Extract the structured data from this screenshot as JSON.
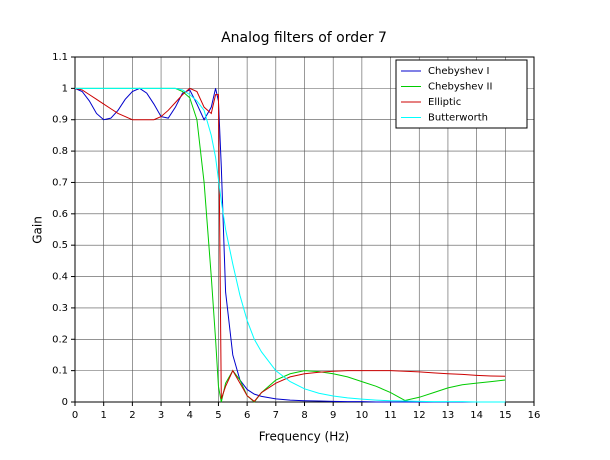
{
  "chart_data": {
    "type": "line",
    "title": "Analog filters of order 7",
    "x_label": "Frequency (Hz)",
    "y_label": "Gain",
    "x": [
      0,
      0.25,
      0.5,
      0.75,
      1,
      1.25,
      1.5,
      1.75,
      2,
      2.25,
      2.5,
      2.75,
      3,
      3.25,
      3.5,
      3.75,
      4,
      4.25,
      4.5,
      4.75,
      4.9,
      5,
      5.1,
      5.25,
      5.5,
      5.75,
      6,
      6.25,
      6.5,
      7,
      7.5,
      8,
      8.5,
      9,
      9.5,
      10,
      10.5,
      11,
      11.5,
      12,
      12.5,
      13,
      13.5,
      14,
      14.5,
      15
    ],
    "series": [
      {
        "name": "Chebyshev I",
        "color": "#0000cc",
        "values": [
          1,
          0.99,
          0.96,
          0.92,
          0.9,
          0.905,
          0.93,
          0.965,
          0.99,
          1,
          0.985,
          0.95,
          0.91,
          0.905,
          0.94,
          0.985,
          0.995,
          0.95,
          0.9,
          0.94,
          1,
          0.96,
          0.75,
          0.35,
          0.15,
          0.07,
          0.04,
          0.025,
          0.018,
          0.01,
          0.006,
          0.004,
          0.003,
          0.002,
          0.001,
          0.001,
          0,
          0,
          0,
          0,
          0,
          0,
          0,
          0,
          0,
          0
        ]
      },
      {
        "name": "Chebyshev II",
        "color": "#00cc00",
        "values": [
          1,
          1,
          1,
          1,
          1,
          1,
          1,
          1,
          1,
          1,
          1,
          1,
          1,
          1,
          1,
          0.99,
          0.97,
          0.9,
          0.7,
          0.4,
          0.2,
          0.05,
          0,
          0.06,
          0.1,
          0.07,
          0.02,
          0,
          0.03,
          0.07,
          0.09,
          0.1,
          0.097,
          0.09,
          0.08,
          0.065,
          0.05,
          0.03,
          0.005,
          0.015,
          0.03,
          0.045,
          0.055,
          0.06,
          0.065,
          0.07
        ]
      },
      {
        "name": "Elliptic",
        "color": "#cc0000",
        "values": [
          1,
          0.995,
          0.98,
          0.965,
          0.95,
          0.935,
          0.92,
          0.91,
          0.9,
          0.9,
          0.9,
          0.9,
          0.91,
          0.93,
          0.955,
          0.98,
          1,
          0.99,
          0.94,
          0.92,
          0.98,
          0.98,
          0.01,
          0.05,
          0.1,
          0.06,
          0.02,
          0.002,
          0.03,
          0.06,
          0.08,
          0.09,
          0.095,
          0.098,
          0.1,
          0.1,
          0.1,
          0.1,
          0.098,
          0.096,
          0.093,
          0.09,
          0.088,
          0.085,
          0.083,
          0.082
        ]
      },
      {
        "name": "Butterworth",
        "color": "#00ffff",
        "values": [
          1,
          1,
          1,
          1,
          1,
          1,
          1,
          1,
          1,
          1,
          1,
          1,
          1,
          1,
          1,
          0.995,
          0.98,
          0.96,
          0.93,
          0.85,
          0.78,
          0.71,
          0.64,
          0.55,
          0.44,
          0.34,
          0.26,
          0.2,
          0.16,
          0.1,
          0.065,
          0.042,
          0.028,
          0.019,
          0.013,
          0.009,
          0.006,
          0.004,
          0.003,
          0.002,
          0.001,
          0.001,
          0.001,
          0,
          0,
          0
        ]
      }
    ],
    "xlim": [
      0,
      16
    ],
    "xticks": [
      0,
      1,
      2,
      3,
      4,
      5,
      6,
      7,
      8,
      9,
      10,
      11,
      12,
      13,
      14,
      15,
      16
    ],
    "ylim": [
      0,
      1.1
    ],
    "yticks": [
      0,
      0.1,
      0.2,
      0.3,
      0.4,
      0.5,
      0.6,
      0.7,
      0.8,
      0.9,
      1,
      1.1
    ],
    "grid": true,
    "legend": "upper-right"
  }
}
